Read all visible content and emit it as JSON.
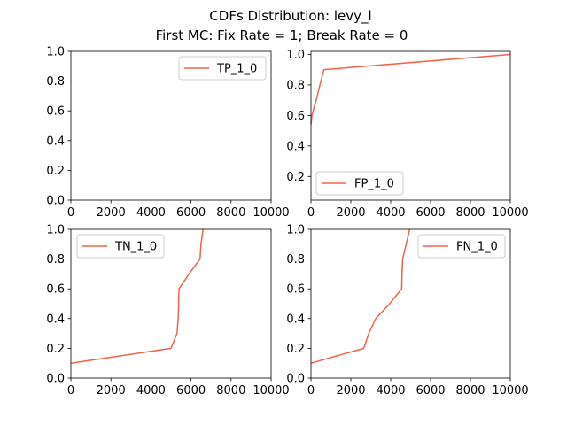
{
  "figure": {
    "title_line1": "CDFs Distribution: levy_l",
    "title_line2": "First MC: Fix Rate = 1; Break Rate = 0"
  },
  "chart_data": [
    {
      "type": "line",
      "panel": "top-left",
      "series": [
        {
          "name": "TP_1_0",
          "color": "#f4624a",
          "x": [],
          "y": []
        }
      ],
      "xlim": [
        0,
        10000
      ],
      "ylim": [
        0,
        1
      ],
      "xticks": [
        0,
        2000,
        4000,
        6000,
        8000,
        10000
      ],
      "xtick_labels": [
        "0",
        "2000",
        "4000",
        "6000",
        "8000",
        "10000"
      ],
      "yticks": [
        0,
        0.2,
        0.4,
        0.6,
        0.8,
        1.0
      ],
      "ytick_labels": [
        "0.0",
        "0.2",
        "0.4",
        "0.6",
        "0.8",
        "1.0"
      ],
      "legend_position": "top-right",
      "grid": false
    },
    {
      "type": "line",
      "panel": "top-right",
      "series": [
        {
          "name": "FP_1_0",
          "color": "#f4624a",
          "x": [
            0,
            50,
            150,
            300,
            450,
            650,
            10000
          ],
          "y": [
            0.54,
            0.6,
            0.65,
            0.72,
            0.8,
            0.9,
            1.0
          ]
        }
      ],
      "xlim": [
        0,
        10000
      ],
      "ylim": [
        0.045,
        1.02
      ],
      "xticks": [
        0,
        2000,
        4000,
        6000,
        8000,
        10000
      ],
      "xtick_labels": [
        "0",
        "2000",
        "4000",
        "6000",
        "8000",
        "10000"
      ],
      "yticks": [
        0.2,
        0.4,
        0.6,
        0.8,
        1.0
      ],
      "ytick_labels": [
        "0.2",
        "0.4",
        "0.6",
        "0.8",
        "1.0"
      ],
      "legend_position": "bottom-left",
      "grid": false
    },
    {
      "type": "line",
      "panel": "bottom-left",
      "series": [
        {
          "name": "TN_1_0",
          "color": "#f4624a",
          "x": [
            0,
            5000,
            5300,
            5360,
            5380,
            5400,
            5900,
            6450,
            6500,
            6600
          ],
          "y": [
            0.1,
            0.2,
            0.3,
            0.4,
            0.5,
            0.6,
            0.7,
            0.8,
            0.9,
            1.0
          ]
        }
      ],
      "xlim": [
        0,
        10000
      ],
      "ylim": [
        0,
        1
      ],
      "xticks": [
        0,
        2000,
        4000,
        6000,
        8000,
        10000
      ],
      "xtick_labels": [
        "0",
        "2000",
        "4000",
        "6000",
        "8000",
        "10000"
      ],
      "yticks": [
        0,
        0.2,
        0.4,
        0.6,
        0.8,
        1.0
      ],
      "ytick_labels": [
        "0.0",
        "0.2",
        "0.4",
        "0.6",
        "0.8",
        "1.0"
      ],
      "legend_position": "top-left",
      "grid": false
    },
    {
      "type": "line",
      "panel": "bottom-right",
      "series": [
        {
          "name": "FN_1_0",
          "color": "#f4624a",
          "x": [
            0,
            2650,
            2900,
            3250,
            3950,
            4550,
            4570,
            4600,
            4950
          ],
          "y": [
            0.1,
            0.2,
            0.3,
            0.4,
            0.5,
            0.6,
            0.7,
            0.8,
            1.0
          ]
        }
      ],
      "xlim": [
        0,
        10000
      ],
      "ylim": [
        0,
        1
      ],
      "xticks": [
        0,
        2000,
        4000,
        6000,
        8000,
        10000
      ],
      "xtick_labels": [
        "0",
        "2000",
        "4000",
        "6000",
        "8000",
        "10000"
      ],
      "yticks": [
        0,
        0.2,
        0.4,
        0.6,
        0.8,
        1.0
      ],
      "ytick_labels": [
        "0.0",
        "0.2",
        "0.4",
        "0.6",
        "0.8",
        "1.0"
      ],
      "legend_position": "top-right",
      "grid": false
    }
  ]
}
